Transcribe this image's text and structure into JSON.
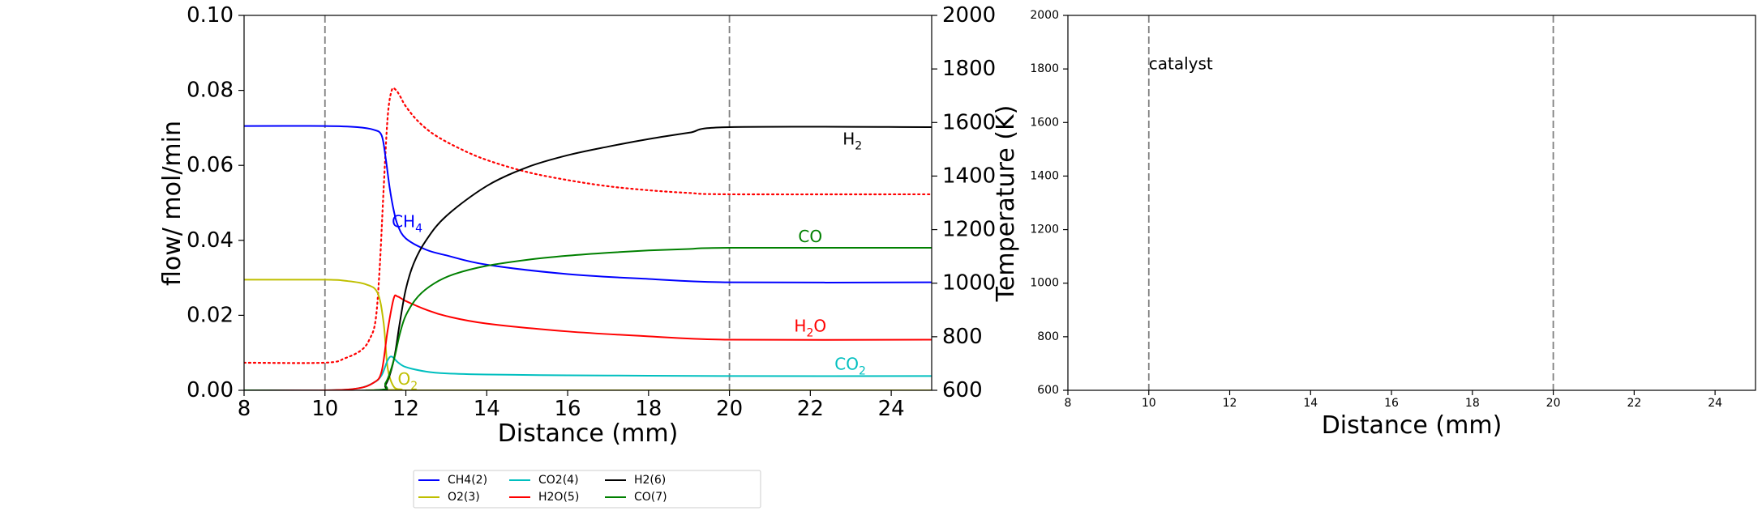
{
  "chart_data": [
    {
      "type": "line",
      "xlabel": "Distance (mm)",
      "ylabel": "flow/ mol/min",
      "y2label": "Temperature (K)",
      "xlim": [
        8,
        25
      ],
      "ylim": [
        0,
        0.1
      ],
      "y2lim": [
        600,
        2000
      ],
      "xticks": [
        "8",
        "10",
        "12",
        "14",
        "16",
        "18",
        "20",
        "22",
        "24"
      ],
      "yticks": [
        "0.00",
        "0.02",
        "0.04",
        "0.06",
        "0.08",
        "0.10"
      ],
      "y2ticks": [
        "600",
        "800",
        "1000",
        "1200",
        "1400",
        "1600",
        "1800",
        "2000"
      ],
      "vlines": [
        10,
        20
      ],
      "series": [
        {
          "name": "CH4(2)",
          "color": "#0000ff",
          "style": "solid",
          "x": [
            8,
            10,
            10.8,
            11.2,
            11.4,
            11.5,
            11.6,
            11.7,
            11.8,
            12,
            12.5,
            13,
            14,
            16,
            18,
            20,
            25
          ],
          "y": [
            0.0705,
            0.0705,
            0.0702,
            0.0695,
            0.068,
            0.062,
            0.054,
            0.048,
            0.044,
            0.0405,
            0.0375,
            0.036,
            0.0335,
            0.031,
            0.0297,
            0.0288,
            0.0288
          ]
        },
        {
          "name": "O2(3)",
          "color": "#bfbf00",
          "style": "solid",
          "x": [
            8,
            10,
            10.5,
            11,
            11.3,
            11.45,
            11.55,
            11.7,
            11.9,
            12,
            25
          ],
          "y": [
            0.0295,
            0.0295,
            0.0292,
            0.0283,
            0.026,
            0.018,
            0.006,
            0.001,
            0.0002,
            0.0,
            0.0
          ]
        },
        {
          "name": "CO2(4)",
          "color": "#00bfbf",
          "style": "solid",
          "x": [
            8,
            10,
            10.8,
            11.2,
            11.4,
            11.55,
            11.65,
            11.8,
            12,
            12.5,
            13,
            14,
            16,
            18,
            20,
            25
          ],
          "y": [
            0.0,
            0.0,
            0.0005,
            0.002,
            0.004,
            0.008,
            0.009,
            0.0075,
            0.0062,
            0.005,
            0.0045,
            0.0042,
            0.004,
            0.0039,
            0.0038,
            0.0038
          ]
        },
        {
          "name": "H2O(5)",
          "color": "#ff0000",
          "style": "solid",
          "x": [
            8,
            10,
            10.8,
            11.2,
            11.4,
            11.55,
            11.7,
            11.8,
            12,
            12.5,
            13,
            14,
            16,
            18,
            20,
            25
          ],
          "y": [
            0.0,
            0.0,
            0.0005,
            0.002,
            0.005,
            0.016,
            0.0245,
            0.025,
            0.0238,
            0.0215,
            0.0198,
            0.0178,
            0.0157,
            0.0144,
            0.0135,
            0.0135
          ]
        },
        {
          "name": "H2(6)",
          "color": "#000000",
          "style": "solid",
          "x": [
            8,
            11.2,
            11.5,
            11.7,
            11.85,
            12,
            12.2,
            12.5,
            13,
            14,
            15,
            16,
            17,
            18,
            19,
            20,
            25
          ],
          "y": [
            0.0,
            0.0,
            0.0015,
            0.008,
            0.018,
            0.027,
            0.034,
            0.04,
            0.0465,
            0.0545,
            0.0595,
            0.0627,
            0.065,
            0.067,
            0.0687,
            0.0702,
            0.0702
          ]
        },
        {
          "name": "CO(7)",
          "color": "#008000",
          "style": "solid",
          "x": [
            8,
            11.2,
            11.5,
            11.7,
            11.85,
            12,
            12.3,
            12.7,
            13.2,
            14,
            15,
            16,
            17,
            18,
            19,
            20,
            25
          ],
          "y": [
            0.0,
            0.0,
            0.002,
            0.008,
            0.015,
            0.02,
            0.025,
            0.0285,
            0.031,
            0.0332,
            0.0348,
            0.0359,
            0.0367,
            0.0373,
            0.0377,
            0.038,
            0.038
          ]
        }
      ],
      "temperature": {
        "color": "#ff0000",
        "style": "dotted",
        "axis": "y2",
        "x": [
          8,
          10,
          10.5,
          10.9,
          11.1,
          11.25,
          11.35,
          11.45,
          11.55,
          11.65,
          11.75,
          11.85,
          12,
          12.3,
          12.7,
          13.3,
          14,
          15,
          16,
          17,
          18,
          19,
          20,
          25
        ],
        "y": [
          703,
          703,
          720,
          750,
          790,
          860,
          1050,
          1350,
          1620,
          1720,
          1722,
          1700,
          1660,
          1605,
          1555,
          1505,
          1460,
          1415,
          1385,
          1362,
          1347,
          1337,
          1332,
          1332
        ]
      },
      "annotations": [
        {
          "main": "CH",
          "sub": "4",
          "x": 11.65,
          "y": 0.0435,
          "color": "#0000ff"
        },
        {
          "main": "H",
          "sub": "2",
          "x": 22.8,
          "y": 0.0655,
          "color": "#000000"
        },
        {
          "main": "CO",
          "sub": "",
          "x": 21.7,
          "y": 0.0395,
          "color": "#008000"
        },
        {
          "main": "H",
          "sub": "2",
          "tail": "O",
          "x": 21.6,
          "y": 0.0157,
          "color": "#ff0000"
        },
        {
          "main": "CO",
          "sub": "2",
          "x": 22.6,
          "y": 0.0055,
          "color": "#00bfbf"
        },
        {
          "main": "O",
          "sub": "2",
          "x": 11.8,
          "y": 0.0015,
          "color": "#bfbf00"
        }
      ]
    },
    {
      "type": "line",
      "xlabel": "Distance (mm)",
      "ylabel": "",
      "xlim": [
        8,
        25
      ],
      "ylim": [
        600,
        2000
      ],
      "xticks": [
        "8",
        "10",
        "12",
        "14",
        "16",
        "18",
        "20",
        "22",
        "24"
      ],
      "yticks": [
        "600",
        "800",
        "1000",
        "1200",
        "1400",
        "1600",
        "1800",
        "2000"
      ],
      "vlines": [
        10,
        20
      ],
      "annotation": "catalyst",
      "annotation_pos": [
        10.0,
        1820
      ],
      "series": []
    }
  ],
  "legend": {
    "placement": "bottom-center",
    "entries": [
      {
        "label": "CH4(2)",
        "color": "#0000ff"
      },
      {
        "label": "O2(3)",
        "color": "#bfbf00"
      },
      {
        "label": "CO2(4)",
        "color": "#00bfbf"
      },
      {
        "label": "H2O(5)",
        "color": "#ff0000"
      },
      {
        "label": "H2(6)",
        "color": "#000000"
      },
      {
        "label": "CO(7)",
        "color": "#008000"
      }
    ]
  }
}
